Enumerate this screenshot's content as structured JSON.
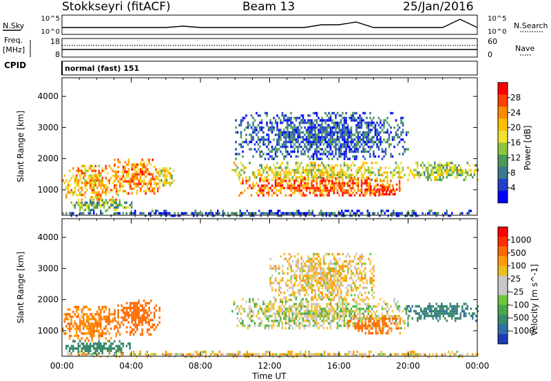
{
  "header": {
    "title": "Stokkseyri (fitACF)",
    "beam": "Beam 13",
    "date": "25/Jan/2016"
  },
  "nsky_panel": {
    "left_label": "N.Sky",
    "right_label": "N.Search",
    "left_ticks": [
      "10^5",
      "10^0"
    ],
    "right_ticks": [
      "10^5",
      "10^0"
    ]
  },
  "freq_panel": {
    "left_label_1": "Freq.",
    "left_label_2": "[MHz]",
    "right_label": "Nave",
    "left_ticks": [
      "18",
      "8"
    ],
    "right_ticks": [
      "60",
      "0"
    ]
  },
  "cpid": {
    "label": "CPID",
    "program": "normal (fast) 151"
  },
  "power_colorbar": {
    "label": "Power [dB]",
    "ticks": [
      "28",
      "24",
      "20",
      "16",
      "12",
      "8",
      "4"
    ],
    "colors": [
      "#0000ff",
      "#2040c8",
      "#3a7890",
      "#4a9a55",
      "#8cc63c",
      "#f0e030",
      "#ffc000",
      "#ff8c00",
      "#ff4000",
      "#ff0000"
    ]
  },
  "velocity_colorbar": {
    "label": "Velocity [m s^-1]",
    "ticks": [
      "1000",
      "500",
      "100",
      "25",
      "-25",
      "-100",
      "-500",
      "-1000"
    ],
    "colors": [
      "#1e3cb4",
      "#2e70a8",
      "#3c8a6e",
      "#4aa84a",
      "#6cc83a",
      "#c8c8c8",
      "#c8c8c8",
      "#e8c020",
      "#ff9a10",
      "#ff6a00",
      "#ff3000",
      "#ff0000"
    ]
  },
  "chart_data": [
    {
      "type": "line",
      "name": "N.Sky / N.Search noise",
      "x": [
        "00:00",
        "01:00",
        "02:00",
        "03:00",
        "04:00",
        "05:00",
        "06:00",
        "07:00",
        "08:00",
        "09:00",
        "10:00",
        "11:00",
        "12:00",
        "13:00",
        "14:00",
        "15:00",
        "16:00",
        "17:00",
        "18:00",
        "19:00",
        "20:00",
        "21:00",
        "22:00",
        "23:00",
        "00:00"
      ],
      "values": [
        2,
        2,
        2,
        2,
        2,
        2,
        2,
        2.5,
        2,
        2,
        2,
        2,
        2,
        2,
        2,
        3,
        3,
        4,
        2,
        2,
        2,
        2,
        2,
        5,
        2
      ]
    },
    {
      "type": "line",
      "name": "Frequency",
      "ylim": [
        8,
        18
      ],
      "values": [
        10.5,
        10.5,
        10.5,
        10.5,
        10.5
      ]
    },
    {
      "type": "heatmap",
      "name": "Power",
      "xlabel": "Time UT",
      "ylabel": "Slant Range [km]",
      "xticks": [
        "00:00",
        "04:00",
        "08:00",
        "12:00",
        "16:00",
        "20:00",
        "00:00"
      ],
      "yticks": [
        "1000",
        "2000",
        "3000",
        "4000"
      ],
      "xlim_hours": [
        0,
        24
      ],
      "ylim_km": [
        180,
        4600
      ],
      "regions": [
        {
          "t0": 0.0,
          "t1": 3.2,
          "r0": 700,
          "r1": 1800,
          "v": 20
        },
        {
          "t0": 3.0,
          "t1": 5.6,
          "r0": 900,
          "r1": 2000,
          "v": 22
        },
        {
          "t0": 5.5,
          "t1": 6.4,
          "r0": 1100,
          "r1": 1800,
          "v": 16
        },
        {
          "t0": 0.3,
          "t1": 4.0,
          "r0": 350,
          "r1": 700,
          "v": 12
        },
        {
          "t0": 9.8,
          "t1": 20.0,
          "r0": 1300,
          "r1": 1900,
          "v": 16
        },
        {
          "t0": 10.2,
          "t1": 19.5,
          "r0": 800,
          "r1": 1400,
          "v": 24
        },
        {
          "t0": 17.5,
          "t1": 19.5,
          "r0": 850,
          "r1": 1200,
          "v": 27
        },
        {
          "t0": 20.0,
          "t1": 24.0,
          "r0": 1350,
          "r1": 1900,
          "v": 14
        },
        {
          "t0": 10.0,
          "t1": 20.0,
          "r0": 2000,
          "r1": 3500,
          "v": 6
        },
        {
          "t0": 0.0,
          "t1": 24.0,
          "r0": 200,
          "r1": 360,
          "v": 6
        }
      ]
    },
    {
      "type": "heatmap",
      "name": "Velocity",
      "xlabel": "Time UT",
      "ylabel": "Slant Range [km]",
      "xticks": [
        "00:00",
        "04:00",
        "08:00",
        "12:00",
        "16:00",
        "20:00",
        "00:00"
      ],
      "yticks": [
        "1000",
        "2000",
        "3000",
        "4000"
      ],
      "xlim_hours": [
        0,
        24
      ],
      "ylim_km": [
        180,
        4600
      ],
      "regions": [
        {
          "t0": 0.0,
          "t1": 3.2,
          "r0": 700,
          "r1": 1800,
          "v": -300
        },
        {
          "t0": 3.0,
          "t1": 5.6,
          "r0": 900,
          "r1": 2000,
          "v": -400
        },
        {
          "t0": 0.2,
          "t1": 4.0,
          "r0": 300,
          "r1": 700,
          "v": 200
        },
        {
          "t0": 9.8,
          "t1": 20.0,
          "r0": 1100,
          "r1": 2050,
          "v": 0
        },
        {
          "t0": 16.5,
          "t1": 19.5,
          "r0": 900,
          "r1": 1500,
          "v": -350
        },
        {
          "t0": 12.0,
          "t1": 18.0,
          "r0": 2000,
          "r1": 3500,
          "v": -60
        },
        {
          "t0": 19.8,
          "t1": 24.0,
          "r0": 1350,
          "r1": 1900,
          "v": 250
        },
        {
          "t0": 0.0,
          "t1": 24.0,
          "r0": 200,
          "r1": 360,
          "v": -50
        }
      ]
    }
  ]
}
